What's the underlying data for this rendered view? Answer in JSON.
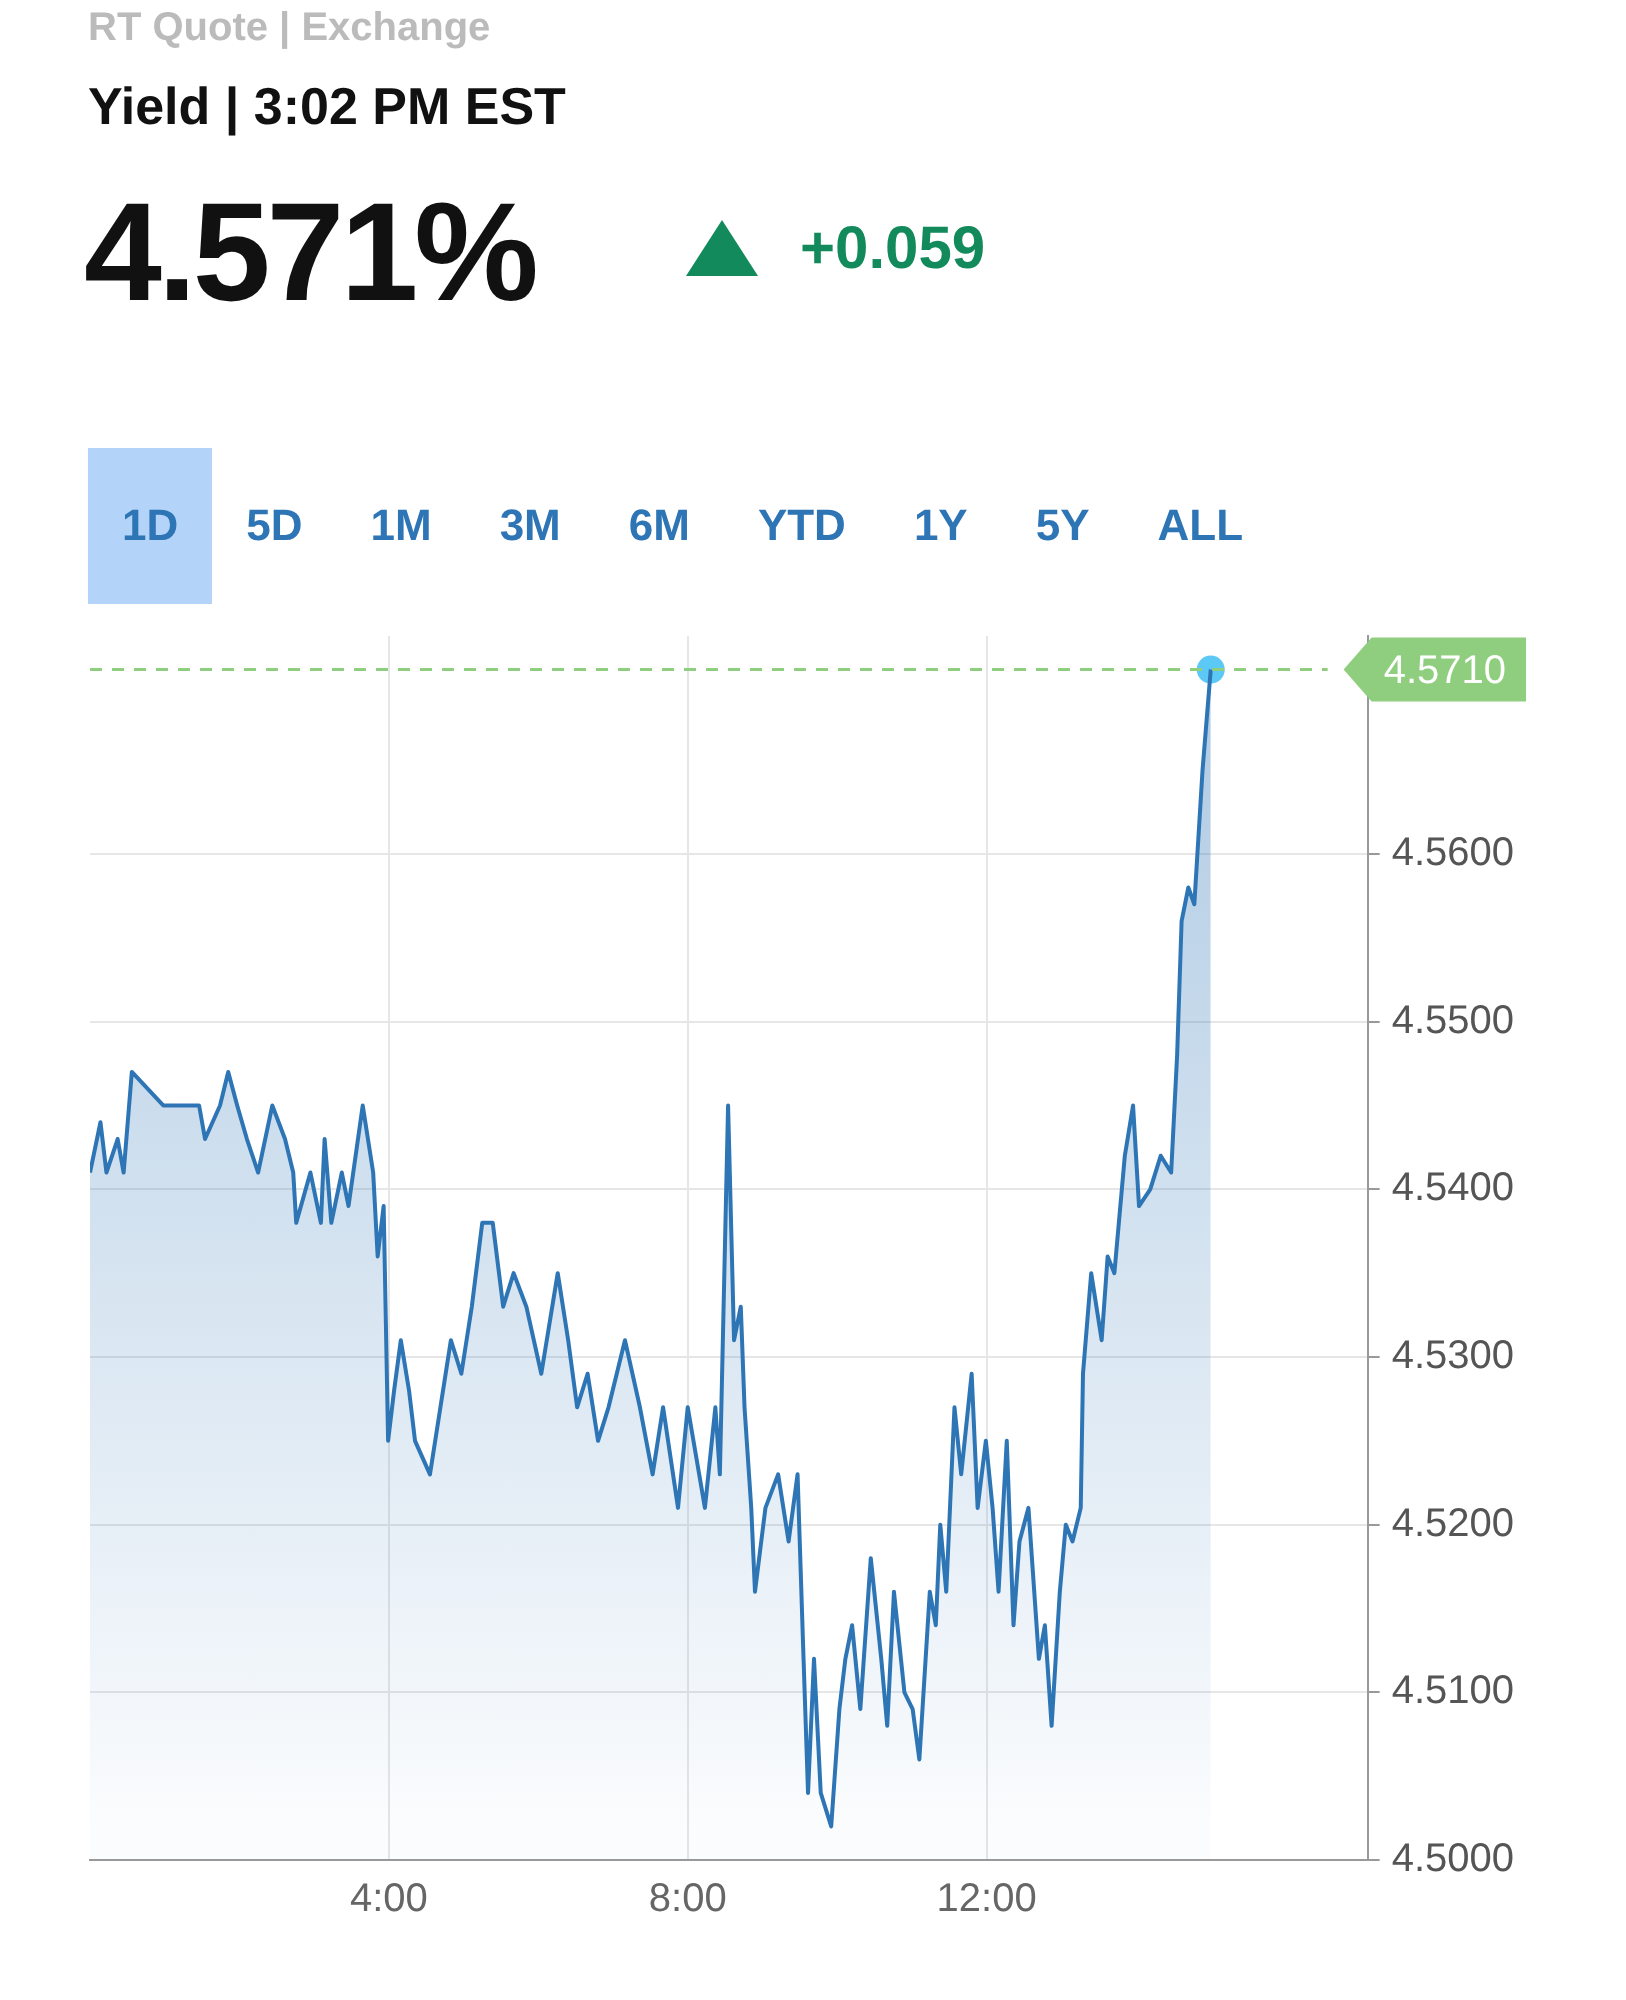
{
  "chart_data": {
    "type": "area",
    "title": "Yield | 3:02 PM EST",
    "subtitle": "4.571%",
    "annotations": [
      "RT Quote | Exchange",
      "+0.059",
      "1D",
      "5D",
      "1M",
      "3M",
      "6M",
      "YTD",
      "1Y",
      "5Y",
      "ALL"
    ],
    "xlim": [
      0,
      17.1
    ],
    "xticks": [
      {
        "value": 4,
        "label": "4:00"
      },
      {
        "value": 8,
        "label": "8:00"
      },
      {
        "value": 12,
        "label": "12:00"
      }
    ],
    "ylim": [
      4.5,
      4.573
    ],
    "yticks": [
      {
        "value": 4.5,
        "label": "4.5000"
      },
      {
        "value": 4.51,
        "label": "4.5100"
      },
      {
        "value": 4.52,
        "label": "4.5200"
      },
      {
        "value": 4.53,
        "label": "4.5300"
      },
      {
        "value": 4.54,
        "label": "4.5400"
      },
      {
        "value": 4.55,
        "label": "4.5500"
      },
      {
        "value": 4.56,
        "label": "4.5600"
      }
    ],
    "grid": true,
    "legend": false,
    "marker": "none",
    "line_style": "solid",
    "ref_lines": [
      {
        "axis": "y",
        "value": 4.571,
        "label": "4.5710",
        "color": "#8fce7e",
        "line_style": "dashed"
      }
    ],
    "series": [
      {
        "color": "#2e75b6",
        "x": [
          0,
          0.14,
          0.22,
          0.37,
          0.45,
          0.56,
          0.98,
          1.46,
          1.54,
          1.74,
          1.85,
          1.97,
          2.1,
          2.25,
          2.44,
          2.61,
          2.72,
          2.76,
          2.95,
          3.09,
          3.14,
          3.23,
          3.37,
          3.46,
          3.65,
          3.79,
          3.85,
          3.93,
          3.99,
          4.07,
          4.16,
          4.27,
          4.35,
          4.55,
          4.69,
          4.83,
          4.97,
          5.11,
          5.25,
          5.39,
          5.53,
          5.67,
          5.84,
          6.04,
          6.26,
          6.4,
          6.52,
          6.66,
          6.8,
          6.94,
          7.16,
          7.36,
          7.53,
          7.67,
          7.87,
          8.0,
          8.23,
          8.37,
          8.43,
          8.54,
          8.62,
          8.71,
          8.76,
          8.85,
          8.9,
          9.04,
          9.21,
          9.35,
          9.47,
          9.55,
          9.61,
          9.69,
          9.78,
          9.92,
          10.03,
          10.11,
          10.2,
          10.31,
          10.45,
          10.59,
          10.67,
          10.76,
          10.9,
          11.01,
          11.1,
          11.24,
          11.32,
          11.38,
          11.46,
          11.57,
          11.66,
          11.8,
          11.88,
          11.99,
          12.08,
          12.16,
          12.27,
          12.36,
          12.44,
          12.56,
          12.7,
          12.78,
          12.87,
          12.98,
          13.06,
          13.15,
          13.26,
          13.29,
          13.4,
          13.54,
          13.62,
          13.71,
          13.85,
          13.96,
          14.04,
          14.19,
          14.33,
          14.47,
          14.55,
          14.61,
          14.7,
          14.78,
          14.89,
          15.0
        ],
        "values": [
          4.541,
          4.544,
          4.541,
          4.543,
          4.541,
          4.547,
          4.545,
          4.545,
          4.543,
          4.545,
          4.547,
          4.545,
          4.543,
          4.541,
          4.545,
          4.543,
          4.541,
          4.538,
          4.541,
          4.538,
          4.543,
          4.538,
          4.541,
          4.539,
          4.545,
          4.541,
          4.536,
          4.539,
          4.525,
          4.528,
          4.531,
          4.528,
          4.525,
          4.523,
          4.527,
          4.531,
          4.529,
          4.533,
          4.538,
          4.538,
          4.533,
          4.535,
          4.533,
          4.529,
          4.535,
          4.531,
          4.527,
          4.529,
          4.525,
          4.527,
          4.531,
          4.527,
          4.523,
          4.527,
          4.521,
          4.527,
          4.521,
          4.527,
          4.523,
          4.545,
          4.531,
          4.533,
          4.527,
          4.521,
          4.516,
          4.521,
          4.523,
          4.519,
          4.523,
          4.512,
          4.504,
          4.512,
          4.504,
          4.502,
          4.509,
          4.512,
          4.514,
          4.509,
          4.518,
          4.512,
          4.508,
          4.516,
          4.51,
          4.509,
          4.506,
          4.516,
          4.514,
          4.52,
          4.516,
          4.527,
          4.523,
          4.529,
          4.521,
          4.525,
          4.521,
          4.516,
          4.525,
          4.514,
          4.519,
          4.521,
          4.512,
          4.514,
          4.508,
          4.516,
          4.52,
          4.519,
          4.521,
          4.529,
          4.535,
          4.531,
          4.536,
          4.535,
          4.542,
          4.545,
          4.539,
          4.54,
          4.542,
          4.541,
          4.548,
          4.556,
          4.558,
          4.557,
          4.565,
          4.571
        ]
      },
      {
        "type": "scatter",
        "color": "#5bc8f5",
        "marker": "circle",
        "x": [
          15.0
        ],
        "values": [
          4.571
        ]
      }
    ]
  }
}
